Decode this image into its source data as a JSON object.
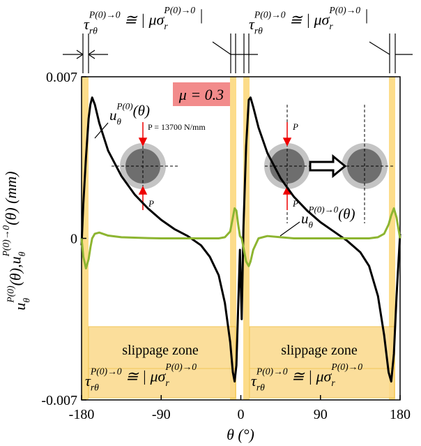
{
  "chart_data": {
    "type": "line",
    "xlabel": [
      {
        "base": "θ (°)"
      }
    ],
    "ylabel": [
      {
        "base": "u",
        "sub": "θ",
        "sup": "P(0)"
      },
      {
        "base": "(θ),u",
        "sub": "θ",
        "sup": "P(0)→0"
      },
      {
        "base": "(θ) (mm)"
      }
    ],
    "xlim": [
      -180,
      180
    ],
    "xticks": [
      -180,
      -90,
      0,
      90,
      180
    ],
    "ylim": [
      -0.007,
      0.007
    ],
    "yticks": [
      -0.007,
      0,
      0.007
    ],
    "x": [
      -180,
      -178,
      -175,
      -172,
      -170,
      -168,
      -165,
      -160,
      -150,
      -135,
      -120,
      -105,
      -90,
      -75,
      -60,
      -45,
      -35,
      -25,
      -18,
      -12,
      -9,
      -7,
      -5,
      -3,
      -1,
      1,
      3,
      6,
      9,
      11,
      14,
      20,
      30,
      45,
      60,
      75,
      90,
      105,
      120,
      135,
      145,
      155,
      162,
      167,
      170,
      173,
      176,
      180
    ],
    "series": [
      {
        "name": [
          {
            "base": "u",
            "sub": "θ",
            "sup": "P(0)"
          },
          {
            "base": "(θ)"
          }
        ],
        "color": "#000000",
        "values": [
          -0.0003,
          0.0015,
          0.0035,
          0.0052,
          0.0058,
          0.0061,
          0.0058,
          0.005,
          0.0038,
          0.0027,
          0.0019,
          0.0013,
          0.0008,
          0.0004,
          0.0001,
          -0.0003,
          -0.0008,
          -0.0016,
          -0.0028,
          -0.0045,
          -0.0058,
          -0.0062,
          -0.0055,
          -0.003,
          -0.0005,
          -0.0035,
          0.0005,
          0.004,
          0.006,
          0.0061,
          0.0057,
          0.0048,
          0.0037,
          0.0026,
          0.0018,
          0.0012,
          0.0007,
          0.0003,
          -0.0001,
          -0.0006,
          -0.0012,
          -0.0025,
          -0.0042,
          -0.0058,
          -0.0062,
          -0.005,
          -0.0025,
          0.0002
        ]
      },
      {
        "name": [
          {
            "base": "u",
            "sub": "θ",
            "sup": "P(0)→0"
          },
          {
            "base": "(θ)"
          }
        ],
        "color": "#8db531",
        "values": [
          0,
          -0.0008,
          -0.0013,
          -0.0009,
          -0.0004,
          0,
          0.0002,
          0.00025,
          0.00012,
          5e-05,
          3e-05,
          1e-05,
          0,
          0,
          0,
          0,
          0,
          0,
          5e-05,
          0.0003,
          0.0009,
          0.0013,
          0.0012,
          0.0006,
          0.0001,
          0,
          -0.0004,
          -0.001,
          -0.0012,
          -0.001,
          -0.0005,
          0,
          0.0001,
          5e-05,
          0,
          0,
          0,
          0,
          0,
          0,
          0,
          5e-05,
          0.0002,
          0.0006,
          0.001,
          0.0013,
          0.0009,
          0
        ]
      }
    ],
    "stress_labels": [
      [
        {
          "base": "τ",
          "sub": "rθ",
          "sup": "P(0)→0"
        },
        {
          "base": " ≅ | μσ",
          "sub": "r",
          "sup": "P(0)→0"
        },
        {
          "base": " |"
        }
      ],
      [
        {
          "base": "τ",
          "sub": "rθ",
          "sup": "P(0)→0"
        },
        {
          "base": " ≅ | μσ",
          "sub": "r",
          "sup": "P(0)→0"
        },
        {
          "base": " |"
        }
      ],
      [
        {
          "base": "τ",
          "sub": "rθ",
          "sup": "P(0)→0"
        },
        {
          "base": " ≅ | μσ",
          "sub": "r",
          "sup": "P(0)→0"
        }
      ],
      [
        {
          "base": "τ",
          "sub": "rθ",
          "sup": "P(0)→0"
        },
        {
          "base": " ≅ | μσ",
          "sub": "r",
          "sup": "P(0)→0"
        }
      ]
    ],
    "zone_labels": [
      "slippage zone",
      "slippage zone"
    ],
    "mu_label": "μ = 0.3",
    "load_label": "P = 13700 N/mm",
    "force_labels": [
      "P",
      "P",
      "P"
    ]
  }
}
